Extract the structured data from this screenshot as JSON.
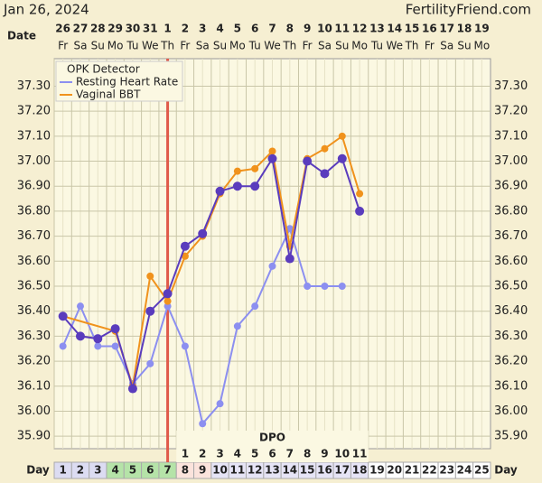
{
  "chart_data": {
    "type": "line",
    "title": "Jan 26, 2024",
    "site": "FertilityFriend.com",
    "date_label": "Date",
    "dates": [
      "26",
      "27",
      "28",
      "29",
      "30",
      "31",
      "1",
      "2",
      "3",
      "4",
      "5",
      "6",
      "7",
      "8",
      "9",
      "10",
      "11",
      "12",
      "13",
      "14",
      "15",
      "16",
      "17",
      "18",
      "19"
    ],
    "weekdays": [
      "Fr",
      "Sa",
      "Su",
      "Mo",
      "Tu",
      "We",
      "Th",
      "Fr",
      "Sa",
      "Su",
      "Mo",
      "Tu",
      "We",
      "Th",
      "Fr",
      "Sa",
      "Su",
      "Mo",
      "Tu",
      "We",
      "Th",
      "Fr",
      "Sa",
      "Su",
      "Mo"
    ],
    "day_label": "Day",
    "xlim": [
      0.5,
      25.5
    ],
    "xticks": [
      1,
      2,
      3,
      4,
      5,
      6,
      7,
      8,
      9,
      10,
      11,
      12,
      13,
      14,
      15,
      16,
      17,
      18,
      19,
      20,
      21,
      22,
      23,
      24,
      25
    ],
    "day_cell_colors": [
      "#dcdcf2",
      "#dcdcf2",
      "#dcdcf2",
      "#b5e3a8",
      "#b5e3a8",
      "#b5e3a8",
      "#b5e3a8",
      "#fbe3dc",
      "#fbe3dc",
      "#e6e4f6",
      "#e6e4f6",
      "#e6e4f6",
      "#e6e4f6",
      "#e6e4f6",
      "#e6e4f6",
      "#e6e4f6",
      "#e6e4f6",
      "#e6e4f6",
      "#ffffff",
      "#ffffff",
      "#ffffff",
      "#ffffff",
      "#ffffff",
      "#ffffff",
      "#ffffff"
    ],
    "ylim": [
      35.85,
      37.41
    ],
    "yticks": [
      {
        "value": 37.3,
        "label": "37.30"
      },
      {
        "value": 37.2,
        "label": "37.20"
      },
      {
        "value": 37.1,
        "label": "37.10"
      },
      {
        "value": 37.0,
        "label": "37.00"
      },
      {
        "value": 36.9,
        "label": "36.90"
      },
      {
        "value": 36.8,
        "label": "36.80"
      },
      {
        "value": 36.7,
        "label": "36.70"
      },
      {
        "value": 36.6,
        "label": "36.60"
      },
      {
        "value": 36.5,
        "label": "36.50"
      },
      {
        "value": 36.4,
        "label": "36.40"
      },
      {
        "value": 36.3,
        "label": "36.30"
      },
      {
        "value": 36.2,
        "label": "36.20"
      },
      {
        "value": 36.1,
        "label": "36.10"
      },
      {
        "value": 36.0,
        "label": "36.00"
      },
      {
        "value": 35.9,
        "label": "35.90"
      }
    ],
    "grid": true,
    "opk": {
      "name": "OPK Detector",
      "color": "#e05a4a",
      "day": 7
    },
    "dpo": {
      "label": "DPO",
      "days": [
        8,
        9,
        10,
        11,
        12,
        13,
        14,
        15,
        16,
        17,
        18
      ],
      "values": [
        1,
        2,
        3,
        4,
        5,
        6,
        7,
        8,
        9,
        10,
        11
      ]
    },
    "series": [
      {
        "name": "Resting Heart Rate",
        "color": "#8c8ff0",
        "x": [
          1,
          2,
          3,
          4,
          5,
          6,
          7,
          8,
          9,
          10,
          11,
          12,
          13,
          14,
          15,
          16,
          17
        ],
        "values": [
          36.26,
          36.42,
          36.26,
          36.26,
          36.11,
          36.19,
          36.42,
          36.26,
          35.95,
          36.03,
          36.34,
          36.42,
          36.58,
          36.73,
          36.5,
          36.5,
          36.5
        ]
      },
      {
        "name": "Vaginal BBT",
        "color": "#f0921c",
        "x": [
          1,
          4,
          5,
          6,
          7,
          8,
          9,
          10,
          11,
          12,
          13,
          14,
          15,
          16,
          17,
          18
        ],
        "values": [
          36.38,
          36.32,
          36.1,
          36.54,
          36.44,
          36.62,
          36.7,
          36.87,
          36.96,
          36.97,
          37.04,
          36.66,
          37.01,
          37.05,
          37.1,
          36.87
        ]
      },
      {
        "color": "#5a3cbd",
        "x": [
          1,
          2,
          3,
          4,
          5,
          6,
          7,
          8,
          9,
          10,
          11,
          12,
          13,
          14,
          15,
          16,
          17,
          18
        ],
        "values": [
          36.38,
          36.3,
          36.29,
          36.33,
          36.09,
          36.4,
          36.47,
          36.66,
          36.71,
          36.88,
          36.9,
          36.9,
          37.01,
          36.61,
          37.0,
          36.95,
          37.01,
          36.8
        ]
      }
    ]
  }
}
